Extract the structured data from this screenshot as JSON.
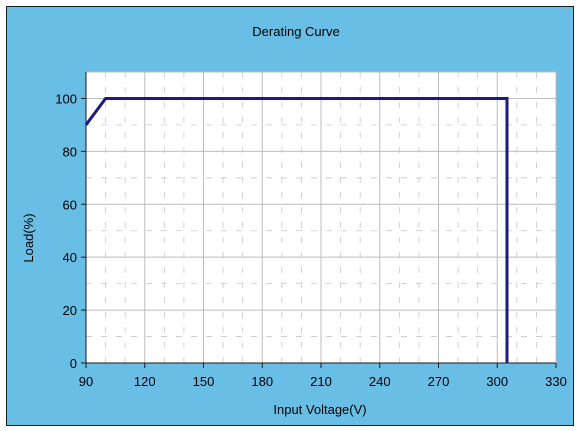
{
  "colors": {
    "background": "#69BEE6",
    "plot_area": "#FFFFFF",
    "line": "#1A1A80",
    "major_grid": "#BDBDBD",
    "minor_grid": "#C8C8C8",
    "frame": "#1A1A1A"
  },
  "chart_data": {
    "type": "line",
    "title": "Derating Curve",
    "xlabel": "Input Voltage(V)",
    "ylabel": "Load(%)",
    "xlim": [
      90,
      330
    ],
    "ylim": [
      0,
      110
    ],
    "x_ticks": [
      90,
      120,
      150,
      180,
      210,
      240,
      270,
      300,
      330
    ],
    "y_ticks": [
      0,
      20,
      40,
      60,
      80,
      100
    ],
    "grid": true,
    "legend": "none",
    "series": [
      {
        "points": [
          [
            90,
            90
          ],
          [
            100,
            100
          ],
          [
            305,
            100
          ],
          [
            305,
            0
          ]
        ]
      }
    ]
  }
}
